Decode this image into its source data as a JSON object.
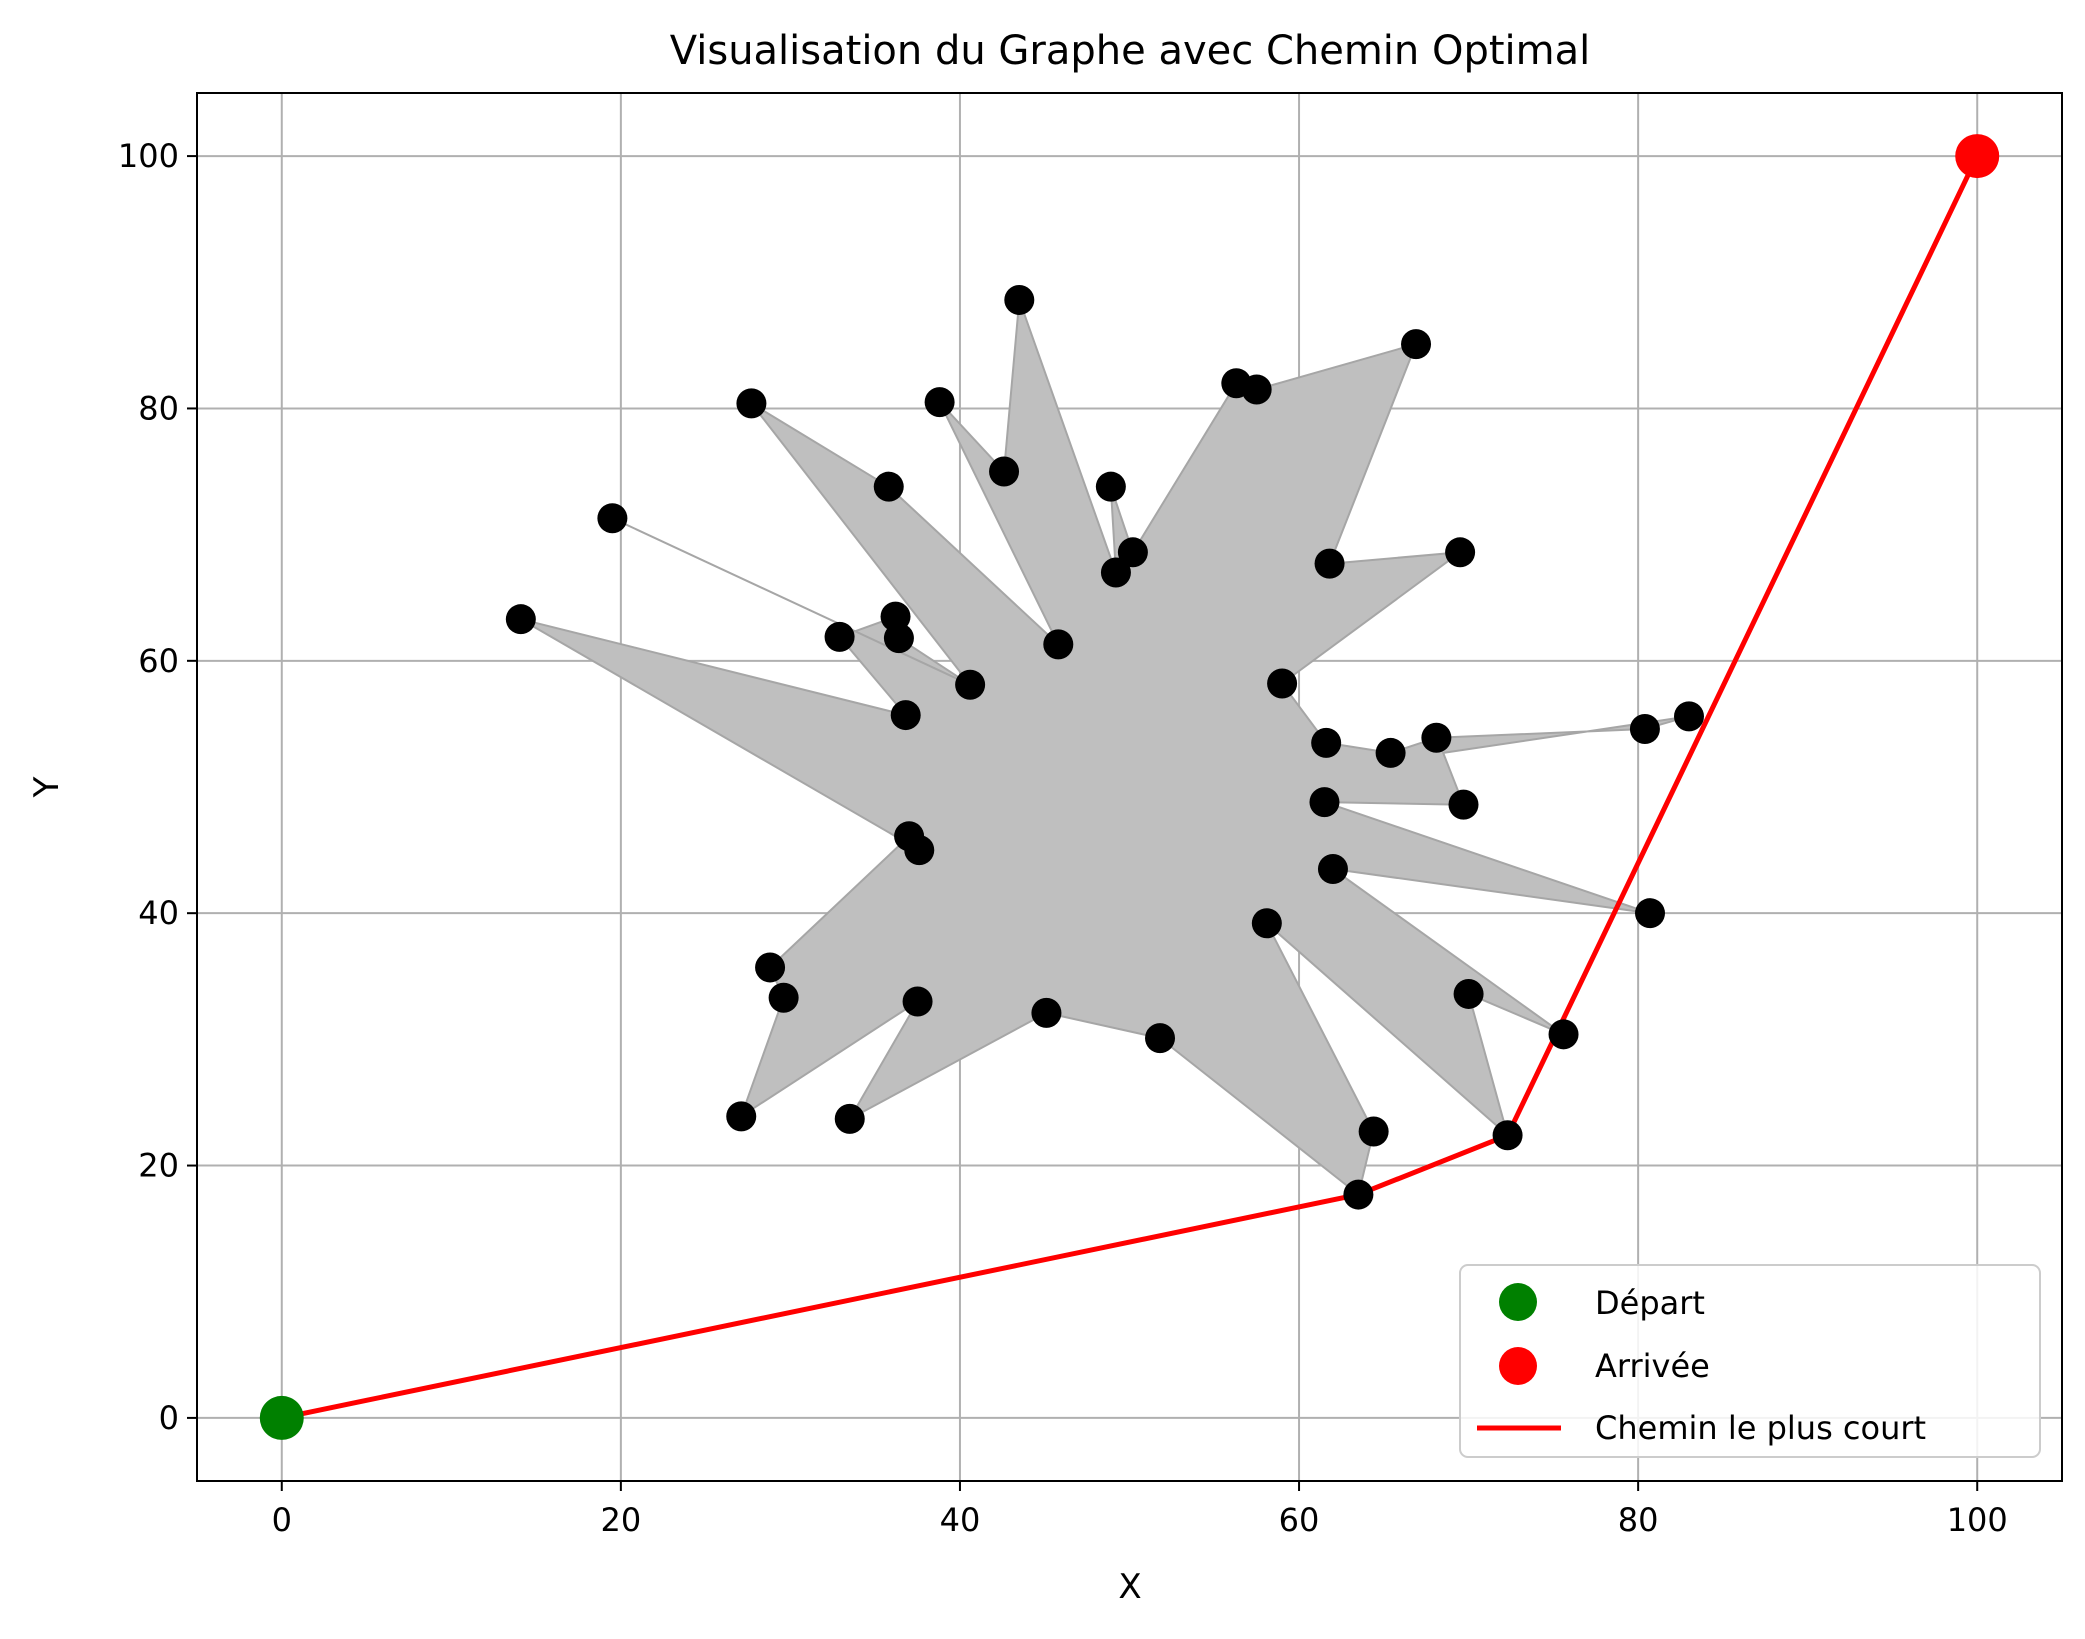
{
  "chart_data": {
    "type": "scatter",
    "title": "Visualisation du Graphe avec Chemin Optimal",
    "xlabel": "X",
    "ylabel": "Y",
    "xlim": [
      -5,
      105
    ],
    "ylim": [
      -5,
      105
    ],
    "xticks": [
      0,
      20,
      40,
      60,
      80,
      100
    ],
    "yticks": [
      0,
      20,
      40,
      60,
      80,
      100
    ],
    "grid": true,
    "legend_position": "bottom-right",
    "colors": {
      "node": "#000000",
      "start": "#008000",
      "end": "#ff0000",
      "path": "#ff0000",
      "obstacle_fill": "#bfbfbf",
      "obstacle_edge": "#a6a6a6",
      "grid": "#b0b0b0"
    },
    "obstacle_polygon": [
      [
        27.7,
        80.4
      ],
      [
        35.8,
        73.8
      ],
      [
        45.8,
        61.3
      ],
      [
        38.8,
        80.5
      ],
      [
        42.6,
        75.0
      ],
      [
        43.5,
        88.6
      ],
      [
        49.2,
        67.0
      ],
      [
        48.9,
        73.8
      ],
      [
        50.2,
        68.6
      ],
      [
        56.3,
        82.0
      ],
      [
        57.5,
        81.5
      ],
      [
        66.9,
        85.1
      ],
      [
        61.8,
        67.7
      ],
      [
        69.5,
        68.6
      ],
      [
        59.0,
        58.2
      ],
      [
        61.6,
        53.5
      ],
      [
        65.4,
        52.7
      ],
      [
        68.1,
        53.9
      ],
      [
        80.4,
        54.6
      ],
      [
        83.0,
        55.6
      ],
      [
        68.5,
        52.7
      ],
      [
        69.7,
        48.6
      ],
      [
        61.5,
        48.8
      ],
      [
        80.7,
        40.0
      ],
      [
        62.0,
        43.5
      ],
      [
        75.6,
        30.4
      ],
      [
        70.0,
        33.6
      ],
      [
        72.3,
        22.4
      ],
      [
        58.1,
        39.2
      ],
      [
        64.4,
        22.7
      ],
      [
        63.5,
        17.7
      ],
      [
        51.8,
        30.1
      ],
      [
        45.1,
        32.1
      ],
      [
        33.5,
        23.7
      ],
      [
        37.5,
        33.0
      ],
      [
        27.1,
        23.9
      ],
      [
        29.6,
        33.3
      ],
      [
        28.8,
        35.7
      ],
      [
        37.0,
        46.1
      ],
      [
        37.6,
        45.0
      ],
      [
        14.1,
        63.3
      ],
      [
        36.8,
        55.7
      ],
      [
        32.9,
        61.9
      ],
      [
        36.2,
        63.5
      ],
      [
        36.4,
        61.8
      ],
      [
        40.6,
        58.1
      ],
      [
        19.5,
        71.3
      ],
      [
        40.6,
        58.1
      ]
    ],
    "nodes": [
      [
        43.5,
        88.6
      ],
      [
        66.9,
        85.1
      ],
      [
        56.3,
        82.0
      ],
      [
        57.5,
        81.5
      ],
      [
        27.7,
        80.4
      ],
      [
        38.8,
        80.5
      ],
      [
        42.6,
        75.0
      ],
      [
        35.8,
        73.8
      ],
      [
        48.9,
        73.8
      ],
      [
        19.5,
        71.3
      ],
      [
        69.5,
        68.6
      ],
      [
        50.2,
        68.6
      ],
      [
        61.8,
        67.7
      ],
      [
        49.2,
        67.0
      ],
      [
        14.1,
        63.3
      ],
      [
        36.2,
        63.5
      ],
      [
        32.9,
        61.9
      ],
      [
        36.4,
        61.8
      ],
      [
        45.8,
        61.3
      ],
      [
        59.0,
        58.2
      ],
      [
        40.6,
        58.1
      ],
      [
        36.8,
        55.7
      ],
      [
        83.0,
        55.6
      ],
      [
        80.4,
        54.6
      ],
      [
        68.1,
        53.9
      ],
      [
        61.6,
        53.5
      ],
      [
        65.4,
        52.7
      ],
      [
        61.5,
        48.8
      ],
      [
        69.7,
        48.6
      ],
      [
        37.0,
        46.1
      ],
      [
        37.6,
        45.0
      ],
      [
        62.0,
        43.5
      ],
      [
        80.7,
        40.0
      ],
      [
        58.1,
        39.2
      ],
      [
        28.8,
        35.7
      ],
      [
        29.6,
        33.3
      ],
      [
        70.0,
        33.6
      ],
      [
        37.5,
        33.0
      ],
      [
        45.1,
        32.1
      ],
      [
        75.6,
        30.4
      ],
      [
        51.8,
        30.1
      ],
      [
        27.1,
        23.9
      ],
      [
        33.5,
        23.7
      ],
      [
        64.4,
        22.7
      ],
      [
        72.3,
        22.4
      ],
      [
        63.5,
        17.7
      ]
    ],
    "path": [
      [
        0,
        0
      ],
      [
        63.5,
        17.7
      ],
      [
        72.3,
        22.4
      ],
      [
        100,
        100
      ]
    ],
    "start": [
      0,
      0
    ],
    "end": [
      100,
      100
    ],
    "legend": [
      {
        "label": "Départ",
        "kind": "marker",
        "color": "#008000"
      },
      {
        "label": "Arrivée",
        "kind": "marker",
        "color": "#ff0000"
      },
      {
        "label": "Chemin le plus court",
        "kind": "line",
        "color": "#ff0000"
      }
    ]
  }
}
